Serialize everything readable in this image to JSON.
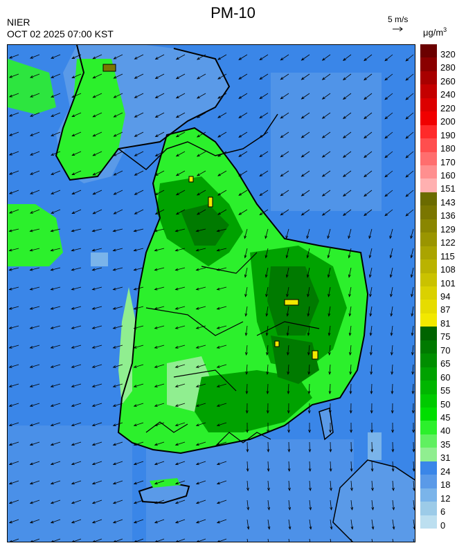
{
  "header": {
    "title": "PM-10",
    "org": "NIER",
    "timestamp": "OCT 02 2025 07:00 KST",
    "wind_reference": "5 m/s",
    "unit_base": "μg/m",
    "unit_exp": "3"
  },
  "colorbar": {
    "labels": [
      "320",
      "280",
      "260",
      "240",
      "220",
      "200",
      "190",
      "180",
      "170",
      "160",
      "151",
      "143",
      "136",
      "129",
      "122",
      "115",
      "108",
      "101",
      "94",
      "87",
      "81",
      "75",
      "70",
      "65",
      "60",
      "55",
      "50",
      "45",
      "40",
      "35",
      "31",
      "24",
      "18",
      "12",
      "6",
      "0"
    ],
    "colors": [
      "#6b0000",
      "#8a0000",
      "#a80000",
      "#c40000",
      "#dc0000",
      "#f00000",
      "#ff2a2a",
      "#ff4e4e",
      "#ff6e6e",
      "#ff8f8f",
      "#ffb0b0",
      "#6b6b00",
      "#7a7600",
      "#8a8600",
      "#9a9500",
      "#aaa400",
      "#bab300",
      "#cac200",
      "#dad100",
      "#e6dc00",
      "#f2e800",
      "#006400",
      "#007a00",
      "#008e00",
      "#00a200",
      "#00b600",
      "#00ca00",
      "#00de00",
      "#2cf02c",
      "#60f060",
      "#90ee90",
      "#3a86e8",
      "#5a9ae8",
      "#7ab4ea",
      "#9ccbe8",
      "#bcdff0"
    ]
  },
  "map": {
    "label": "PM-10 concentration and wind field map",
    "ocean_color": "#3a86e8",
    "land_light_color": "#90ee90",
    "land_mid_color": "#2cf02c",
    "land_dark_color": "#00a200",
    "land_darkest_color": "#007a00"
  }
}
